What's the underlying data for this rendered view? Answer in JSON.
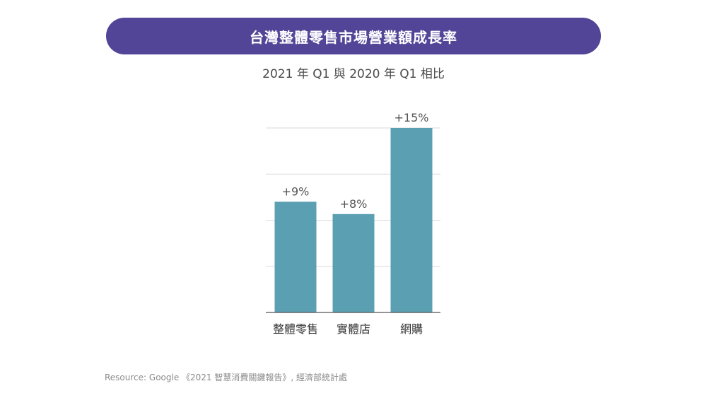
{
  "title": "台灣整體零售市場營業額成長率",
  "subtitle": "2021 年 Q1 與 2020 年 Q1 相比",
  "source": "Resource: Google 《2021 智慧消費關鍵報告》, 經濟部統計處",
  "colors": {
    "banner": "#524598",
    "bar": "#5b9fb2",
    "grid": "#d9d9d9",
    "axis": "#555555",
    "text": "#333333"
  },
  "chart_data": {
    "type": "bar",
    "categories": [
      "整體零售",
      "實體店",
      "網購"
    ],
    "values": [
      9,
      8,
      15
    ],
    "labels": [
      "+9%",
      "+8%",
      "+15%"
    ],
    "ylim": [
      0,
      15
    ],
    "grid": true,
    "grid_step": 3.75
  }
}
